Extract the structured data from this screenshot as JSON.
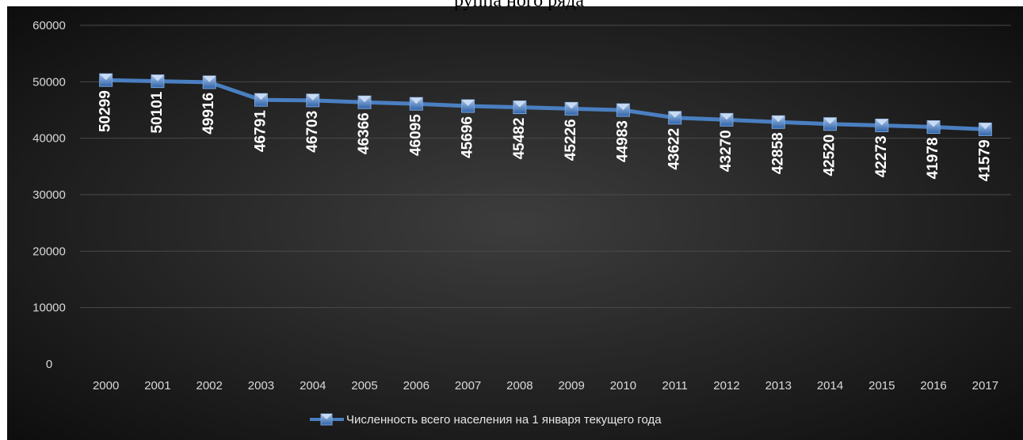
{
  "chart_data": {
    "type": "line",
    "title": "руппа ного ряда",
    "xlabel": "",
    "ylabel": "",
    "categories": [
      "2000",
      "2001",
      "2002",
      "2003",
      "2004",
      "2005",
      "2006",
      "2007",
      "2008",
      "2009",
      "2010",
      "2011",
      "2012",
      "2013",
      "2014",
      "2015",
      "2016",
      "2017"
    ],
    "series": [
      {
        "name": "Численность всего населения на 1 января текущего года",
        "values": [
          50299,
          50101,
          49916,
          46791,
          46703,
          46366,
          46095,
          45696,
          45482,
          45226,
          44983,
          43622,
          43270,
          42858,
          42520,
          42273,
          41978,
          41579
        ],
        "color": "#4a7fc1",
        "marker": "square"
      }
    ],
    "y_ticks": [
      "0",
      "10000",
      "20000",
      "30000",
      "40000",
      "50000",
      "60000"
    ],
    "ylim": [
      0,
      60000
    ],
    "grid": true,
    "legend_position": "bottom",
    "data_labels": "vertical",
    "colors": {
      "background_center": "#3d3d3d",
      "background_edge": "#0e0e0e",
      "gridline": "#4a4a4a",
      "line": "#4a7fc1"
    }
  }
}
